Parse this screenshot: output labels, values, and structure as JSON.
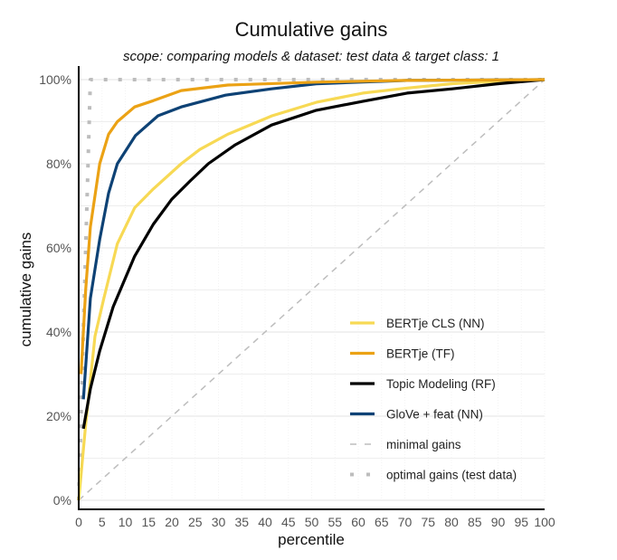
{
  "chart_data": {
    "type": "line",
    "title": "Cumulative gains",
    "subtitle": "scope: comparing models & dataset: test data & target class: 1",
    "xlabel": "percentile",
    "ylabel": "cumulative gains",
    "xlim": [
      0,
      100
    ],
    "ylim": [
      0,
      100
    ],
    "x_ticks": [
      0,
      5,
      10,
      15,
      20,
      25,
      30,
      35,
      40,
      45,
      50,
      55,
      60,
      65,
      70,
      75,
      80,
      85,
      90,
      95,
      100
    ],
    "y_ticks": [
      0,
      20,
      40,
      60,
      80,
      100
    ],
    "y_tick_labels": [
      "0%",
      "20%",
      "40%",
      "60%",
      "80%",
      "100%"
    ],
    "grid": true,
    "legend_position": "bottom-right",
    "series": [
      {
        "name": "BERTje CLS (NN)",
        "color": "#f7d954",
        "style": "solid",
        "x": [
          0,
          1.5,
          3.5,
          5.4,
          8.3,
          12,
          16,
          22,
          26,
          32,
          41.5,
          51,
          61,
          70.5,
          80,
          90,
          100
        ],
        "y": [
          0,
          18,
          39,
          48,
          61,
          69.5,
          74,
          80,
          83.4,
          87,
          91.4,
          94.6,
          96.8,
          98,
          99,
          99.6,
          100
        ]
      },
      {
        "name": "BERTje (TF)",
        "color": "#eba215",
        "style": "solid",
        "x": [
          0.5,
          1.5,
          2.5,
          4.5,
          6.4,
          8.3,
          12,
          16,
          22,
          32,
          51,
          70,
          100
        ],
        "y": [
          30,
          50,
          65,
          80,
          87,
          90,
          93.5,
          95,
          97.4,
          98.7,
          99.4,
          99.8,
          100
        ]
      },
      {
        "name": "Topic Modeling (RF)",
        "color": "#000000",
        "style": "solid",
        "x": [
          1,
          2.5,
          4.5,
          7.4,
          12,
          16,
          20,
          24,
          27.8,
          33.6,
          41.4,
          51,
          60.8,
          70.5,
          80.2,
          89.9,
          100
        ],
        "y": [
          17,
          26.5,
          35.5,
          46,
          58,
          65.6,
          71.6,
          76,
          80,
          84.5,
          89.2,
          92.7,
          94.8,
          96.8,
          97.8,
          99,
          100
        ]
      },
      {
        "name": "GloVe + feat (NN)",
        "color": "#0e4275",
        "style": "solid",
        "x": [
          1,
          2.5,
          4.5,
          6.4,
          8.3,
          12.2,
          17,
          22,
          31.5,
          41.4,
          51,
          70.5,
          100
        ],
        "y": [
          24,
          48,
          62,
          73,
          80,
          86.7,
          91.4,
          93.5,
          96.3,
          97.8,
          99,
          99.8,
          100
        ]
      },
      {
        "name": "minimal gains",
        "color": "#bdbdbd",
        "style": "dashed",
        "x": [
          0,
          100
        ],
        "y": [
          0,
          100
        ]
      },
      {
        "name": "optimal gains (test data)",
        "color": "#bdbdbd",
        "style": "dotted",
        "x": [
          0,
          2.5,
          100
        ],
        "y": [
          0,
          100,
          100
        ]
      }
    ]
  }
}
